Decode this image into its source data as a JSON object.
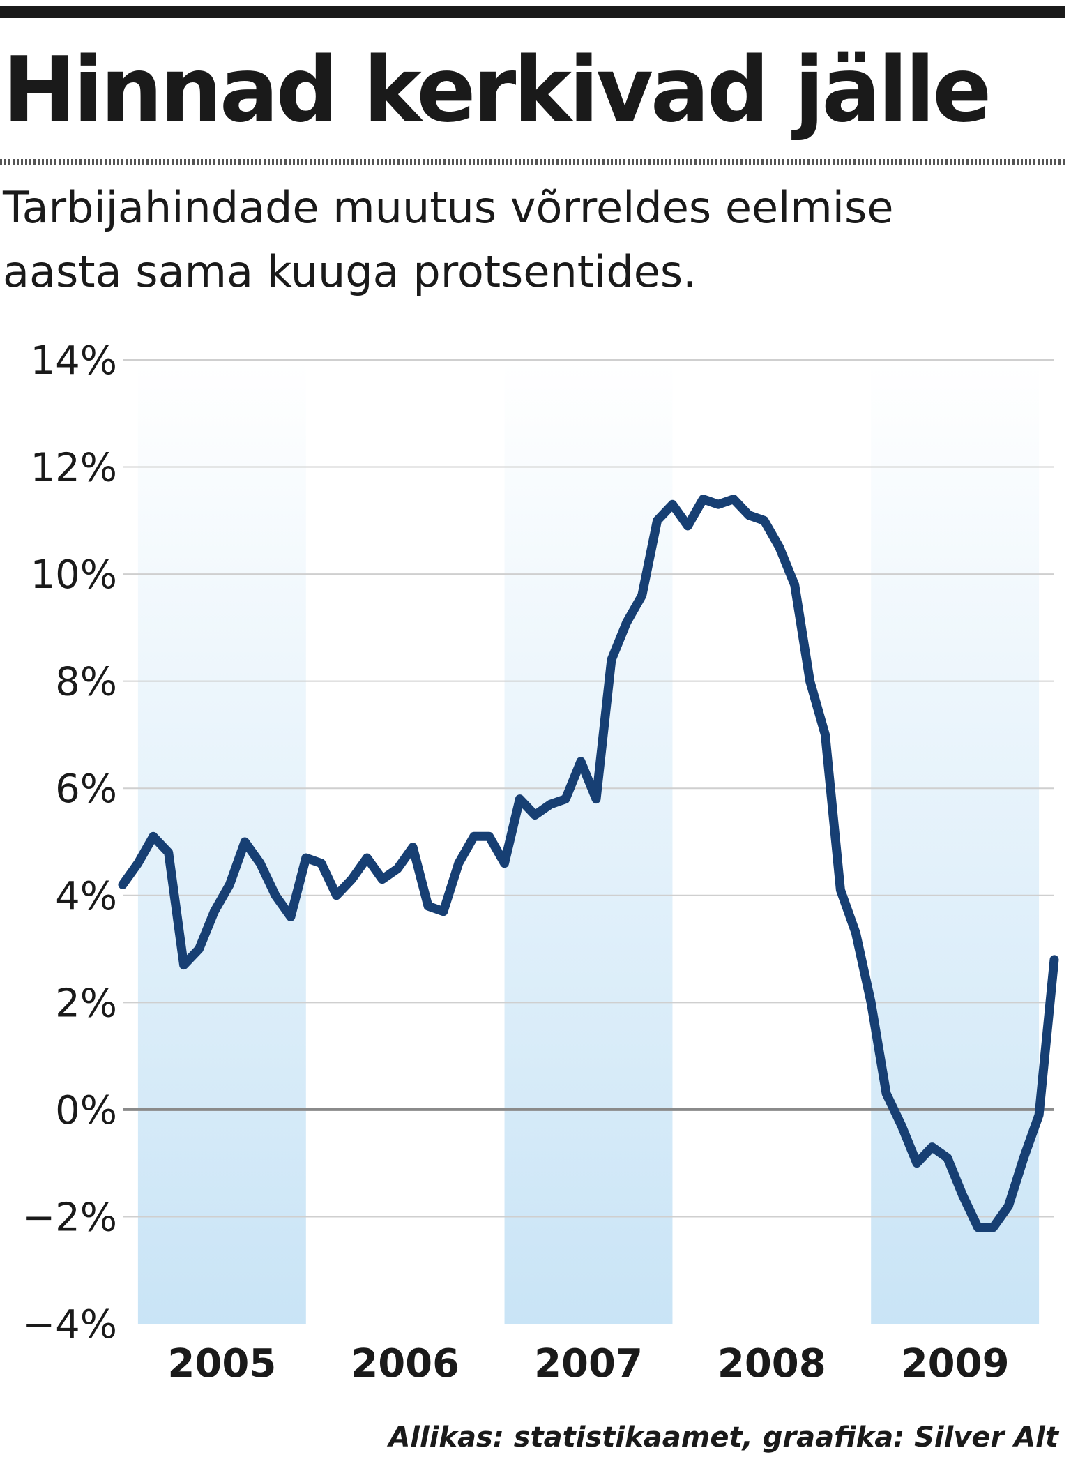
{
  "title": "Hinnad kerkivad jälle",
  "subtitle_lines": [
    "Tarbijahindade muutus võrreldes eelmise",
    "aasta sama kuuga protsentides."
  ],
  "source": "Allikas: statistikaamet, graafika: Silver Alt",
  "colors": {
    "line": "#173f73",
    "band_top": "#ffffff",
    "band_bottom": "#c9e4f6",
    "grid": "#cfcfcf",
    "zero_line": "#8a8a8a",
    "text": "#1a1a1a"
  },
  "chart_data": {
    "type": "line",
    "title": "Hinnad kerkivad jälle",
    "subtitle": "Tarbijahindade muutus võrreldes eelmise aasta sama kuuga protsentides.",
    "xlabel": "",
    "ylabel": "",
    "ylim": [
      -4,
      14
    ],
    "xlim": [
      "2004-12",
      "2010-01"
    ],
    "yticks": [
      14,
      12,
      10,
      8,
      6,
      4,
      2,
      0,
      -2,
      -4
    ],
    "ytick_labels": [
      "14%",
      "12%",
      "10%",
      "8%",
      "6%",
      "4%",
      "2%",
      "0%",
      "−2%",
      "−4%"
    ],
    "x_categories": [
      "2005",
      "2006",
      "2007",
      "2008",
      "2009"
    ],
    "shaded_years": [
      "2005",
      "2007",
      "2009"
    ],
    "grid": "horizontal",
    "legend": "none",
    "series": [
      {
        "x": [
          "2004-12",
          "2005-01",
          "2005-02",
          "2005-03",
          "2005-04",
          "2005-05",
          "2005-06",
          "2005-07",
          "2005-08",
          "2005-09",
          "2005-10",
          "2005-11",
          "2005-12",
          "2006-01",
          "2006-02",
          "2006-03",
          "2006-04",
          "2006-05",
          "2006-06",
          "2006-07",
          "2006-08",
          "2006-09",
          "2006-10",
          "2006-11",
          "2006-12",
          "2007-01",
          "2007-02",
          "2007-03",
          "2007-04",
          "2007-05",
          "2007-06",
          "2007-07",
          "2007-08",
          "2007-09",
          "2007-10",
          "2007-11",
          "2007-12",
          "2008-01",
          "2008-02",
          "2008-03",
          "2008-04",
          "2008-05",
          "2008-06",
          "2008-07",
          "2008-08",
          "2008-09",
          "2008-10",
          "2008-11",
          "2008-12",
          "2009-01",
          "2009-02",
          "2009-03",
          "2009-04",
          "2009-05",
          "2009-06",
          "2009-07",
          "2009-08",
          "2009-09",
          "2009-10",
          "2009-11",
          "2009-12"
        ],
        "values": [
          4.2,
          4.6,
          5.1,
          4.8,
          2.7,
          3.0,
          3.7,
          4.2,
          5.0,
          4.6,
          4.0,
          3.6,
          4.7,
          4.6,
          4.0,
          4.3,
          4.7,
          4.3,
          4.5,
          4.9,
          3.8,
          3.7,
          4.6,
          5.1,
          5.1,
          4.6,
          5.8,
          5.5,
          5.7,
          5.8,
          6.5,
          5.8,
          8.4,
          9.1,
          9.6,
          11.0,
          11.3,
          10.9,
          11.4,
          11.3,
          11.4,
          11.1,
          11.0,
          10.5,
          9.8,
          8.0,
          7.0,
          4.1,
          3.3,
          2.0,
          0.3,
          -0.3,
          -1.0,
          -0.7,
          -0.9,
          -1.6,
          -2.2,
          -2.2,
          -1.8,
          -0.9,
          -0.1
        ]
      },
      {
        "x": [
          "2010-01"
        ],
        "values": [
          2.8
        ]
      }
    ]
  }
}
